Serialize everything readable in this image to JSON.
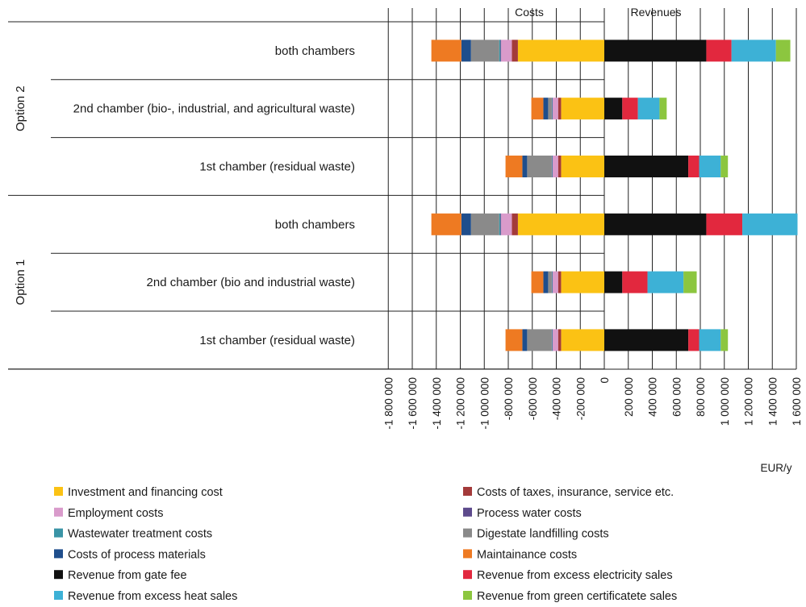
{
  "chart_data": {
    "type": "bar",
    "orientation": "horizontal",
    "stacked": true,
    "headers": {
      "costs": "Costs",
      "revenues": "Revenues"
    },
    "xlabel": "EUR/y",
    "xlim": [
      -1800000,
      1600000
    ],
    "x_ticks": [
      -1800000,
      -1600000,
      -1400000,
      -1200000,
      -1000000,
      -800000,
      -600000,
      -400000,
      -200000,
      0,
      200000,
      400000,
      600000,
      800000,
      1000000,
      1200000,
      1400000,
      1600000
    ],
    "x_tick_labels": [
      "-1 800 000",
      "-1 600 000",
      "-1 400 000",
      "-1 200 000",
      "-1 000 000",
      "-800 000",
      "-600 000",
      "-400 000",
      "-200 000",
      "0",
      "200 000",
      "400 000",
      "600 000",
      "800 000",
      "1 000 000",
      "1 200 000",
      "1 400 000",
      "1 600 000"
    ],
    "grid": "vertical lines at ticks",
    "legend_position": "bottom, two columns",
    "groups": [
      {
        "label": "Option 2",
        "categories": [
          "both chambers",
          "2nd chamber (bio-, industrial, and agricultural waste)",
          "1st chamber (residual waste)"
        ]
      },
      {
        "label": "Option 1",
        "categories": [
          "both chambers",
          "2nd chamber (bio and industrial waste)",
          "1st chamber (residual waste)"
        ]
      }
    ],
    "categories": [
      "both chambers",
      "2nd chamber (bio-, industrial, and agricultural waste)",
      "1st chamber (residual waste)",
      "both chambers",
      "2nd chamber (bio and industrial waste)",
      "1st chamber (residual waste)"
    ],
    "series": [
      {
        "name": "Investment and financing cost",
        "color": "#FBC214",
        "side": "cost",
        "values": [
          -720000,
          -360000,
          -360000,
          -720000,
          -360000,
          -360000
        ]
      },
      {
        "name": "Costs of taxes, insurance, service etc.",
        "color": "#A33A3A",
        "side": "cost",
        "values": [
          -50000,
          -25000,
          -25000,
          -50000,
          -25000,
          -25000
        ]
      },
      {
        "name": "Employment costs",
        "color": "#D99BCB",
        "side": "cost",
        "values": [
          -90000,
          -45000,
          -45000,
          -90000,
          -45000,
          -45000
        ]
      },
      {
        "name": "Process water costs",
        "color": "#5D4A8C",
        "side": "cost",
        "values": [
          -6000,
          -3000,
          -3000,
          -6000,
          -3000,
          -3000
        ]
      },
      {
        "name": "Wastewater treatment costs",
        "color": "#3A94A6",
        "side": "cost",
        "values": [
          -10000,
          -5000,
          -5000,
          -10000,
          -5000,
          -5000
        ]
      },
      {
        "name": "Digestate landfilling costs",
        "color": "#8A8A8A",
        "side": "cost",
        "values": [
          -235000,
          -30000,
          -205000,
          -235000,
          -30000,
          -205000
        ]
      },
      {
        "name": "Costs of process materials",
        "color": "#1F4E8C",
        "side": "cost",
        "values": [
          -80000,
          -40000,
          -40000,
          -80000,
          -40000,
          -40000
        ]
      },
      {
        "name": "Maintainance costs",
        "color": "#EE7A22",
        "side": "cost",
        "values": [
          -250000,
          -100000,
          -140000,
          -250000,
          -100000,
          -140000
        ]
      },
      {
        "name": "Revenue from gate fee",
        "color": "#111111",
        "side": "revenue",
        "values": [
          850000,
          150000,
          700000,
          850000,
          150000,
          700000
        ]
      },
      {
        "name": "Revenue from excess electricity sales",
        "color": "#E2283E",
        "side": "revenue",
        "values": [
          210000,
          130000,
          90000,
          300000,
          210000,
          90000
        ]
      },
      {
        "name": "Revenue from excess heat sales",
        "color": "#3DB1D6",
        "side": "revenue",
        "values": [
          370000,
          180000,
          180000,
          460000,
          300000,
          180000
        ]
      },
      {
        "name": "Revenue from green certificatete sales",
        "color": "#8CC63F",
        "side": "revenue",
        "values": [
          120000,
          60000,
          60000,
          0,
          110000,
          60000
        ]
      }
    ],
    "legend_layout": [
      [
        "Investment and financing cost",
        "Costs of taxes, insurance, service etc."
      ],
      [
        "Employment costs",
        "Process water costs"
      ],
      [
        "Wastewater treatment costs",
        "Digestate landfilling costs"
      ],
      [
        "Costs of process materials",
        "Maintainance costs"
      ],
      [
        "Revenue from gate fee",
        "Revenue from excess electricity sales"
      ],
      [
        "Revenue from excess heat sales",
        "Revenue from green certificatete sales"
      ]
    ]
  }
}
